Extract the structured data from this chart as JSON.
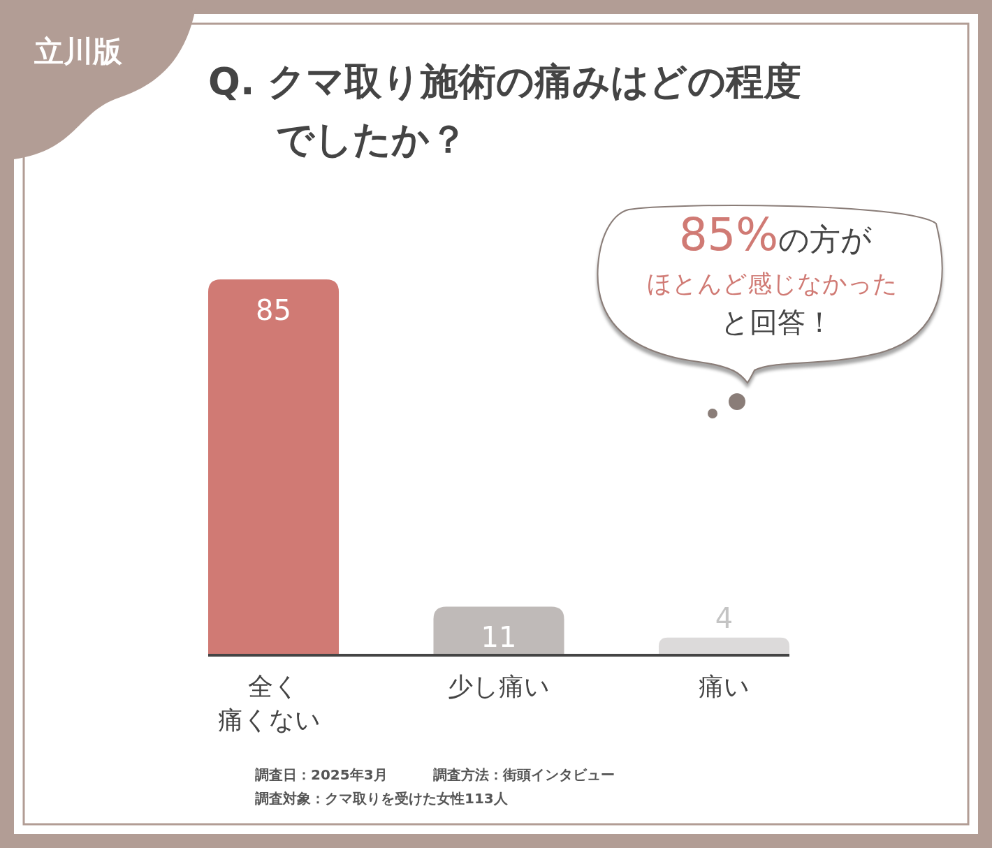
{
  "chart_data": {
    "type": "bar",
    "title": "Q. クマ取り施術の痛みはどの程度でしたか？",
    "subtitle": "立川版",
    "categories": [
      "全く痛くない",
      "少し痛い",
      "痛い"
    ],
    "values": [
      85,
      11,
      4
    ],
    "colors": [
      "#d07a74",
      "#bfbab8",
      "#dcdada"
    ],
    "data_labels": true,
    "tick_labels": "x",
    "annotations": [
      "85%の方が",
      "ほとんど感じなかった",
      "と回答！",
      "調査日：2025年3月",
      "調査方法：街頭インタビュー",
      "調査対象：クマ取りを受けた女性113人"
    ]
  }
}
